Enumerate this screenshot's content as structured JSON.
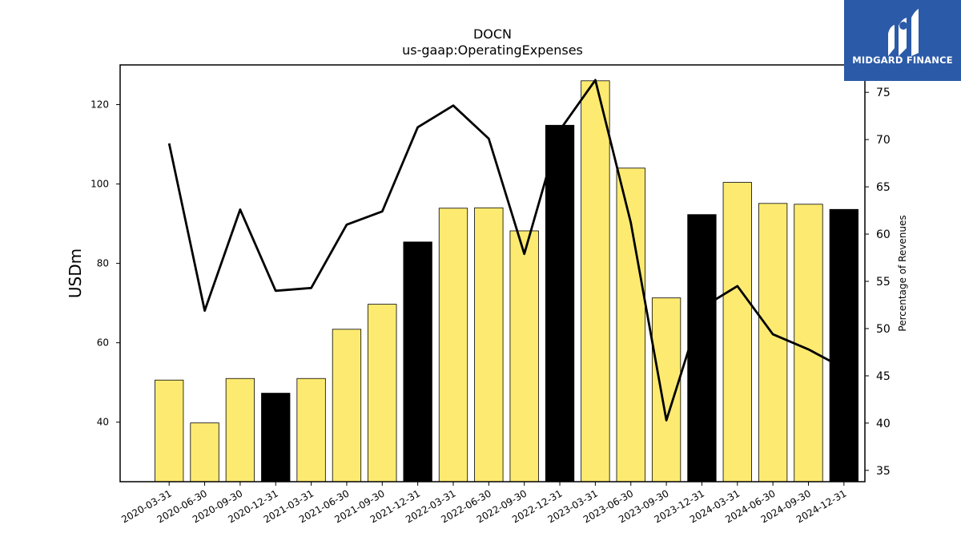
{
  "chart_data": {
    "type": "bar",
    "title": "DOCN",
    "subtitle": "us-gaap:OperatingExpenses",
    "ylabel": "USDm",
    "y2label": "Percentage of Revenues",
    "ylim": [
      25,
      130
    ],
    "y2lim": [
      33.8,
      77.9
    ],
    "yticks": [
      40,
      60,
      80,
      100,
      120
    ],
    "y2ticks": [
      35,
      40,
      45,
      50,
      55,
      60,
      65,
      70,
      75
    ],
    "categories": [
      "2020-03-31",
      "2020-06-30",
      "2020-09-30",
      "2020-12-31",
      "2021-03-31",
      "2021-06-30",
      "2021-09-30",
      "2021-12-31",
      "2022-03-31",
      "2022-06-30",
      "2022-09-30",
      "2022-12-31",
      "2023-03-31",
      "2023-06-30",
      "2023-09-30",
      "2023-12-31",
      "2024-03-31",
      "2024-06-30",
      "2024-09-30",
      "2024-12-31"
    ],
    "series": [
      {
        "kind": "bar",
        "axis": "left",
        "values": [
          50.6,
          39.8,
          51.0,
          47.3,
          51.0,
          63.4,
          69.7,
          85.4,
          93.9,
          94.0,
          88.2,
          114.8,
          126.0,
          104.0,
          71.3,
          92.3,
          100.4,
          95.1,
          94.9,
          93.6
        ],
        "annual_flags": [
          false,
          false,
          false,
          true,
          false,
          false,
          false,
          true,
          false,
          false,
          false,
          true,
          false,
          false,
          false,
          true,
          false,
          false,
          false,
          true
        ]
      },
      {
        "kind": "line",
        "axis": "right",
        "values": [
          69.6,
          51.9,
          62.6,
          54.0,
          54.3,
          61.0,
          62.4,
          71.3,
          73.6,
          70.1,
          57.9,
          71.0,
          76.3,
          61.2,
          40.3,
          52.2,
          54.5,
          49.4,
          47.8,
          45.8
        ]
      }
    ],
    "colors": {
      "quarterly_bar": "#fdeb71",
      "annual_bar": "#000000",
      "line": "#000000",
      "bar_edge": "#000000"
    },
    "grid": false,
    "legend": "none"
  },
  "logo": {
    "text": "MIDGARD FINANCE",
    "icon": "midgard-logo-icon",
    "color": "#2b5aa8"
  }
}
